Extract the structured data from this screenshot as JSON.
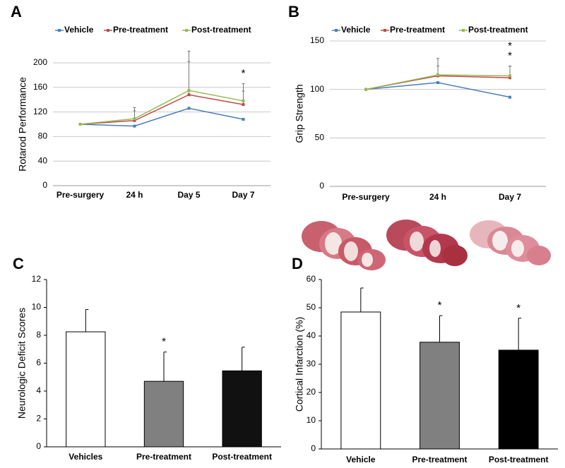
{
  "chart_data": [
    {
      "type": "line",
      "panel_label": "A",
      "y_label": "Rotarod Performance",
      "categories": [
        "Pre-surgery",
        "24 h",
        "Day 5",
        "Day 7"
      ],
      "series": [
        {
          "name": "Vehicle",
          "color": "#4a7ebb",
          "values": [
            100,
            97,
            126,
            108
          ],
          "errors": [
            0,
            0,
            0,
            0
          ]
        },
        {
          "name": "Pre-treatment",
          "color": "#be4b48",
          "values": [
            100,
            106,
            148,
            132
          ],
          "errors": [
            0,
            16,
            54,
            22
          ]
        },
        {
          "name": "Post-treatment",
          "color": "#98b954",
          "values": [
            100,
            109,
            155,
            138
          ],
          "errors": [
            0,
            18,
            64,
            28
          ]
        }
      ],
      "ylim": [
        0,
        200
      ],
      "yticks": [
        0,
        40,
        80,
        120,
        160,
        200
      ],
      "grid": true,
      "annotations": [
        {
          "text": "*",
          "category": "Day 7"
        }
      ]
    },
    {
      "type": "line",
      "panel_label": "B",
      "y_label": "Grip Strength",
      "categories": [
        "Pre-surgery",
        "24 h",
        "Day 7"
      ],
      "series": [
        {
          "name": "Vehicle",
          "color": "#4a7ebb",
          "values": [
            100,
            107,
            92
          ],
          "errors": [
            0,
            0,
            0
          ]
        },
        {
          "name": "Pre-treatment",
          "color": "#be4b48",
          "values": [
            100,
            114,
            112
          ],
          "errors": [
            0,
            10,
            12
          ]
        },
        {
          "name": "Post-treatment",
          "color": "#98b954",
          "values": [
            100,
            115,
            114
          ],
          "errors": [
            0,
            17,
            10
          ]
        }
      ],
      "ylim": [
        0,
        150
      ],
      "yticks": [
        0,
        50,
        100,
        150
      ],
      "grid": true,
      "annotations": [
        {
          "text": "*",
          "category": "Day 7"
        },
        {
          "text": "*",
          "category": "Day 7"
        }
      ]
    },
    {
      "type": "bar",
      "panel_label": "C",
      "y_label": "Neurologic Deficit Scores",
      "categories": [
        "Vehicles",
        "Pre-treatment",
        "Post-treatment"
      ],
      "values": [
        8.25,
        4.7,
        5.45
      ],
      "errors": [
        1.6,
        2.1,
        1.7
      ],
      "colors": [
        "#ffffff",
        "#808080",
        "#111111"
      ],
      "ylim": [
        0,
        12
      ],
      "yticks": [
        0,
        2,
        4,
        6,
        8,
        10,
        12
      ],
      "grid": false,
      "annotations": [
        {
          "text": "*",
          "category": "Pre-treatment"
        }
      ]
    },
    {
      "type": "bar",
      "panel_label": "D",
      "y_label": "Cortical Infarction (%)",
      "categories": [
        "Vehicle",
        "Pre-treatment",
        "Post-treatment"
      ],
      "values": [
        48.5,
        37.8,
        35
      ],
      "errors": [
        8.5,
        9.4,
        11.3
      ],
      "colors": [
        "#ffffff",
        "#808080",
        "#000000"
      ],
      "ylim": [
        0,
        60
      ],
      "yticks": [
        0,
        10,
        20,
        30,
        40,
        50,
        60
      ],
      "grid": false,
      "annotations": [
        {
          "text": "*",
          "category": "Pre-treatment"
        },
        {
          "text": "*",
          "category": "Post-treatment"
        }
      ]
    }
  ]
}
